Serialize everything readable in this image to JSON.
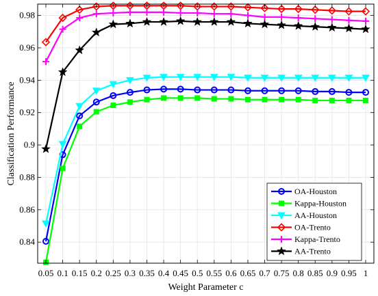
{
  "chart_data": {
    "type": "line",
    "title": "",
    "xlabel": "Weight Parameter c",
    "ylabel": "Classification Performance",
    "x": [
      0.05,
      0.1,
      0.15,
      0.2,
      0.25,
      0.3,
      0.35,
      0.4,
      0.45,
      0.5,
      0.55,
      0.6,
      0.65,
      0.7,
      0.75,
      0.8,
      0.85,
      0.9,
      0.95,
      1
    ],
    "x_tick_labels": [
      "0.05",
      "0.1",
      "0.15",
      "0.2",
      "0.25",
      "0.3",
      "0.35",
      "0.4",
      "0.45",
      "0.5",
      "0.55",
      "0.6",
      "0.65",
      "0.7",
      "0.75",
      "0.8",
      "0.85",
      "0.9",
      "0.95",
      "1"
    ],
    "ylim": [
      0.827,
      0.987
    ],
    "y_ticks": [
      0.84,
      0.86,
      0.88,
      0.9,
      0.92,
      0.94,
      0.96,
      0.98
    ],
    "y_tick_labels": [
      "0.84",
      "0.86",
      "0.88",
      "0.9",
      "0.92",
      "0.94",
      "0.96",
      "0.98"
    ],
    "grid": true,
    "legend_position": "bottom-right",
    "series": [
      {
        "name": "OA-Houston",
        "color": "#0000ff",
        "marker": "circle",
        "values": [
          0.8405,
          0.894,
          0.918,
          0.9265,
          0.9305,
          0.9325,
          0.934,
          0.9345,
          0.9345,
          0.934,
          0.934,
          0.934,
          0.9335,
          0.9335,
          0.9335,
          0.9335,
          0.933,
          0.933,
          0.9325,
          0.9325
        ]
      },
      {
        "name": "Kappa-Houston",
        "color": "#00ff00",
        "marker": "square",
        "values": [
          0.8275,
          0.8855,
          0.9115,
          0.9205,
          0.9245,
          0.9265,
          0.928,
          0.929,
          0.929,
          0.929,
          0.9285,
          0.9285,
          0.928,
          0.928,
          0.928,
          0.928,
          0.9275,
          0.9275,
          0.9275,
          0.9275
        ]
      },
      {
        "name": "AA-Houston",
        "color": "#00ffff",
        "marker": "triangle-down",
        "values": [
          0.8515,
          0.9005,
          0.924,
          0.9335,
          0.9375,
          0.94,
          0.9415,
          0.942,
          0.942,
          0.942,
          0.942,
          0.942,
          0.9415,
          0.9415,
          0.9415,
          0.9415,
          0.9415,
          0.9415,
          0.9415,
          0.9415
        ]
      },
      {
        "name": "OA-Trento",
        "color": "#ff0000",
        "marker": "diamond",
        "values": [
          0.9635,
          0.9785,
          0.9835,
          0.9855,
          0.986,
          0.986,
          0.986,
          0.986,
          0.986,
          0.9855,
          0.9855,
          0.9855,
          0.985,
          0.9845,
          0.984,
          0.984,
          0.9835,
          0.983,
          0.9825,
          0.9825
        ]
      },
      {
        "name": "Kappa-Trento",
        "color": "#ff00ff",
        "marker": "plus",
        "values": [
          0.9515,
          0.9715,
          0.9785,
          0.981,
          0.9815,
          0.982,
          0.982,
          0.982,
          0.9815,
          0.9815,
          0.981,
          0.981,
          0.98,
          0.979,
          0.979,
          0.9785,
          0.978,
          0.9775,
          0.977,
          0.9765
        ]
      },
      {
        "name": "AA-Trento",
        "color": "#000000",
        "marker": "star",
        "values": [
          0.8975,
          0.945,
          0.9585,
          0.9695,
          0.9745,
          0.975,
          0.976,
          0.976,
          0.9765,
          0.976,
          0.976,
          0.976,
          0.975,
          0.9745,
          0.974,
          0.9735,
          0.973,
          0.9725,
          0.972,
          0.9715
        ]
      }
    ]
  }
}
